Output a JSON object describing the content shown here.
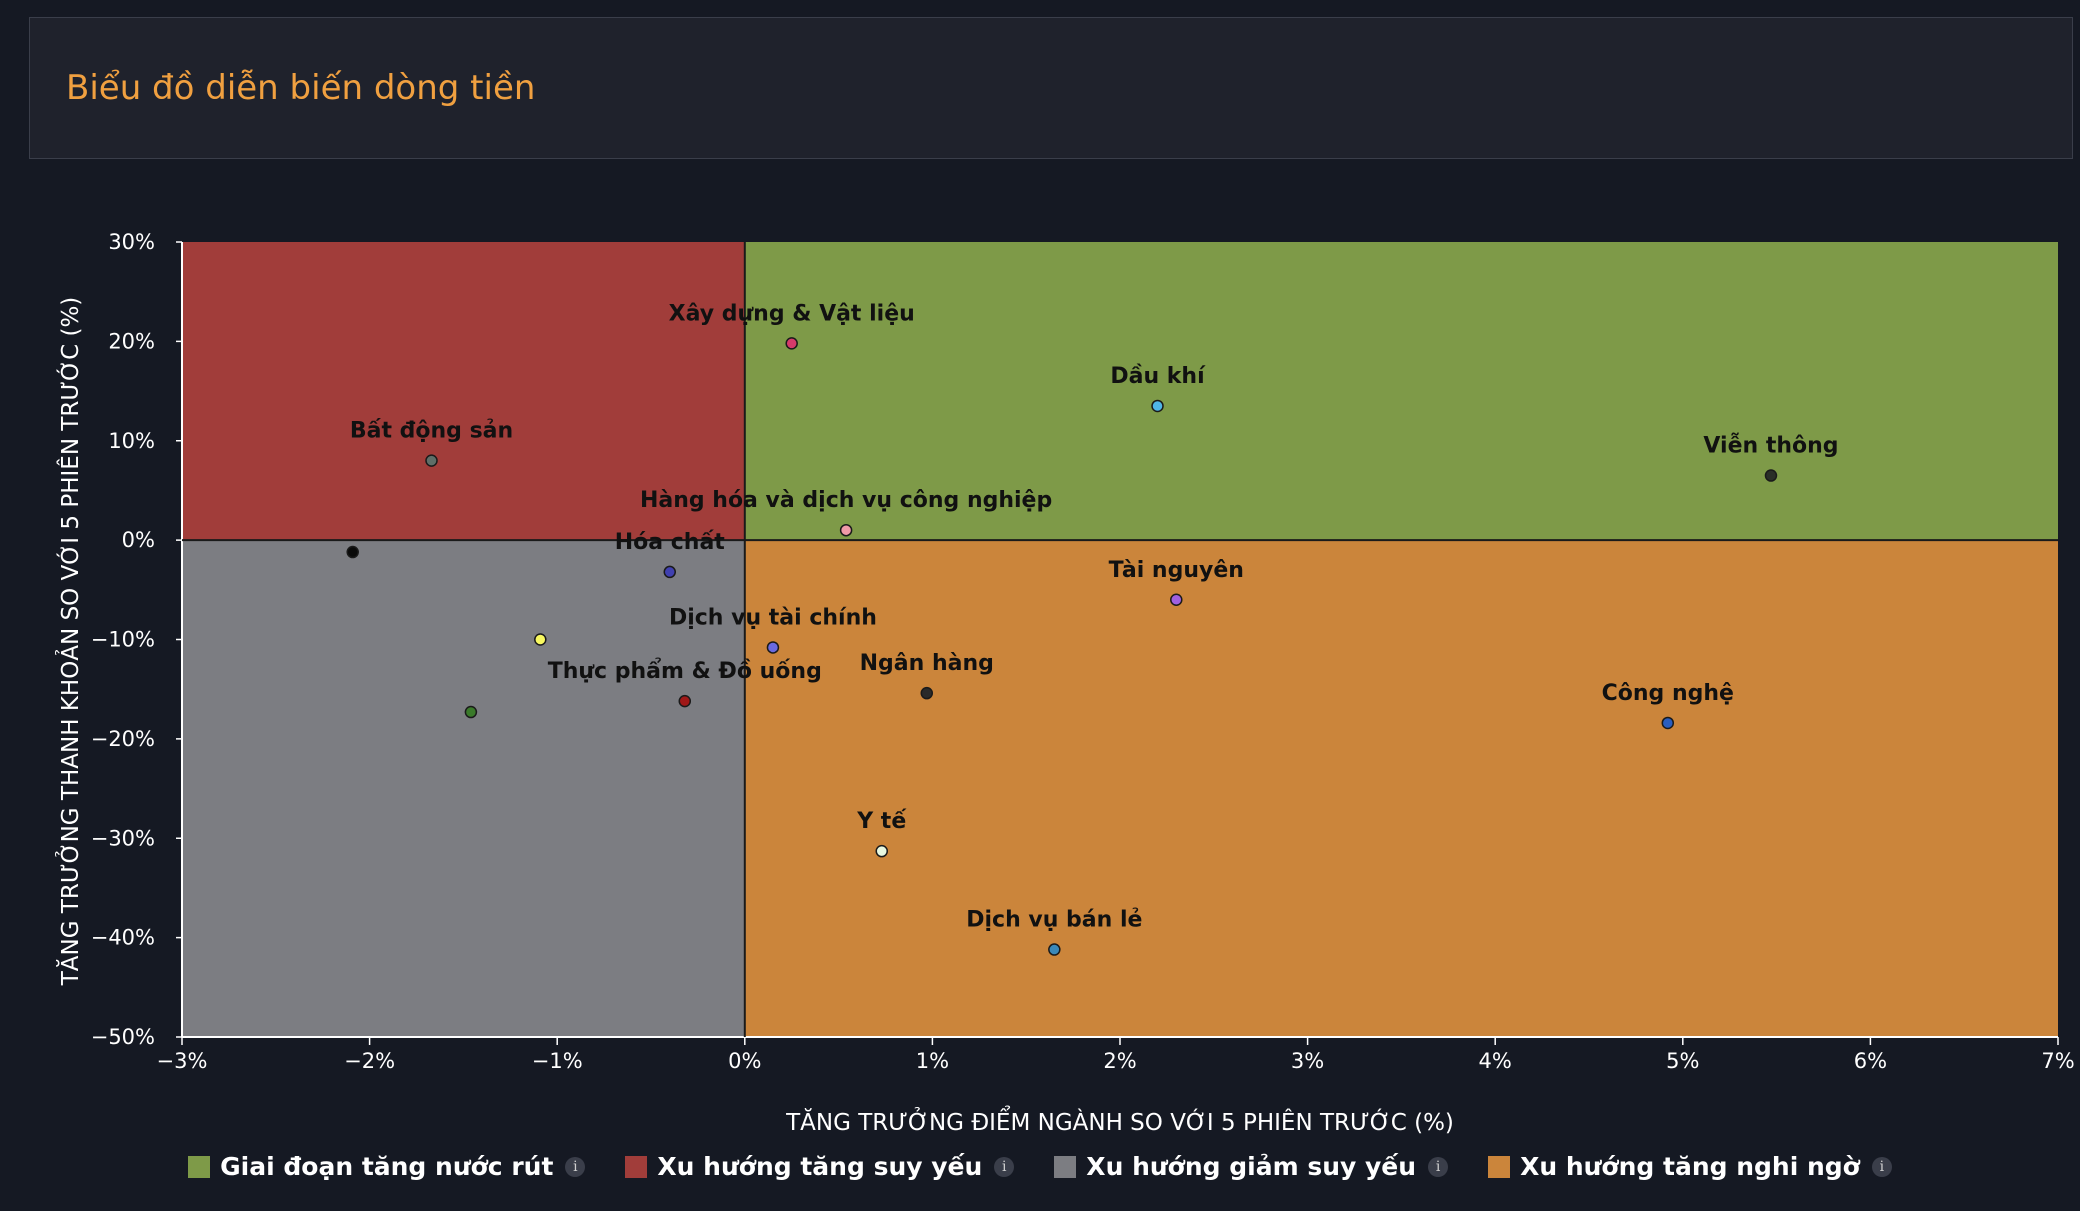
{
  "header": {
    "title": "Biểu đồ diễn biến dòng tiền"
  },
  "chart_data": {
    "type": "scatter",
    "xlabel": "TĂNG TRƯỞNG ĐIỂM NGÀNH SO VỚI 5 PHIÊN TRƯỚC (%)",
    "ylabel": "TĂNG TRƯỞNG THANH KHOẢN SO VỚI 5 PHIÊN TRƯỚC (%)",
    "xlim": [
      -3,
      7
    ],
    "ylim": [
      -50,
      30
    ],
    "x_ticks": [
      -3,
      -2,
      -1,
      0,
      1,
      2,
      3,
      4,
      5,
      6,
      7
    ],
    "y_ticks": [
      30,
      20,
      10,
      0,
      -10,
      -20,
      -30,
      -40,
      -50
    ],
    "x_tick_labels": [
      "−3%",
      "−2%",
      "−1%",
      "0%",
      "1%",
      "2%",
      "3%",
      "4%",
      "5%",
      "6%",
      "7%"
    ],
    "y_tick_labels": [
      "30%",
      "20%",
      "10%",
      "0%",
      "−10%",
      "−20%",
      "−30%",
      "−40%",
      "−50%"
    ],
    "quadrants": [
      {
        "name": "Giai đoạn tăng nước rút",
        "color": "#7e9a48",
        "x_range": [
          0,
          7
        ],
        "y_range": [
          0,
          30
        ]
      },
      {
        "name": "Xu hướng tăng suy yếu",
        "color": "#a13d3a",
        "x_range": [
          -3,
          0
        ],
        "y_range": [
          0,
          30
        ]
      },
      {
        "name": "Xu hướng giảm suy yếu",
        "color": "#7c7d82",
        "x_range": [
          -3,
          0
        ],
        "y_range": [
          -50,
          0
        ]
      },
      {
        "name": "Xu hướng tăng nghi ngờ",
        "color": "#cb853b",
        "x_range": [
          0,
          7
        ],
        "y_range": [
          -50,
          0
        ]
      }
    ],
    "points": [
      {
        "label": "Xây dựng & Vật liệu",
        "x": 0.25,
        "y": 19.8,
        "color": "#d63a6a"
      },
      {
        "label": "Dầu khí",
        "x": 2.2,
        "y": 13.5,
        "color": "#4fb6e8"
      },
      {
        "label": "Viễn thông",
        "x": 5.47,
        "y": 6.5,
        "color": "#2a2e28"
      },
      {
        "label": "Bất động sản",
        "x": -1.67,
        "y": 8.0,
        "color": "#5f6e68"
      },
      {
        "label": "Hàng hóa và dịch vụ công nghiệp",
        "x": 0.54,
        "y": 1.0,
        "color": "#f09aa8"
      },
      {
        "label": "Hóa chất",
        "x": -0.4,
        "y": -3.2,
        "color": "#4040b0"
      },
      {
        "label": "Tài nguyên",
        "x": 2.3,
        "y": -6.0,
        "color": "#a060e0"
      },
      {
        "label": "Dịch vụ tài chính",
        "x": 0.15,
        "y": -10.8,
        "color": "#6a6ae0"
      },
      {
        "label": "Ngân hàng",
        "x": 0.97,
        "y": -15.4,
        "color": "#2a2a2a"
      },
      {
        "label": "Thực phẩm & Đồ uống",
        "x": -0.32,
        "y": -16.2,
        "color": "#a01818"
      },
      {
        "label": "Công nghệ",
        "x": 4.92,
        "y": -18.4,
        "color": "#2a5ec0"
      },
      {
        "label": "Y tế",
        "x": 0.73,
        "y": -31.3,
        "color": "#e8f8e0"
      },
      {
        "label": "Dịch vụ bán lẻ",
        "x": 1.65,
        "y": -41.2,
        "color": "#3a88b8"
      },
      {
        "label": "",
        "x": -2.09,
        "y": -1.2,
        "color": "#0a0a0a"
      },
      {
        "label": "",
        "x": -1.09,
        "y": -10.0,
        "color": "#f8f860"
      },
      {
        "label": "",
        "x": -1.46,
        "y": -17.3,
        "color": "#3a7a2a"
      }
    ],
    "legend_position": "bottom",
    "grid": false
  }
}
